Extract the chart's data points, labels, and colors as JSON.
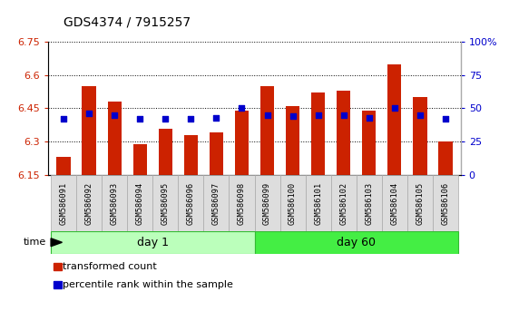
{
  "title": "GDS4374 / 7915257",
  "samples": [
    "GSM586091",
    "GSM586092",
    "GSM586093",
    "GSM586094",
    "GSM586095",
    "GSM586096",
    "GSM586097",
    "GSM586098",
    "GSM586099",
    "GSM586100",
    "GSM586101",
    "GSM586102",
    "GSM586103",
    "GSM586104",
    "GSM586105",
    "GSM586106"
  ],
  "groups": [
    "day 1",
    "day 1",
    "day 1",
    "day 1",
    "day 1",
    "day 1",
    "day 1",
    "day 1",
    "day 60",
    "day 60",
    "day 60",
    "day 60",
    "day 60",
    "day 60",
    "day 60",
    "day 60"
  ],
  "bar_values": [
    6.23,
    6.55,
    6.48,
    6.29,
    6.36,
    6.33,
    6.34,
    6.44,
    6.55,
    6.46,
    6.52,
    6.53,
    6.44,
    6.65,
    6.5,
    6.3
  ],
  "dot_values": [
    42,
    46,
    45,
    42,
    42,
    42,
    43,
    50,
    45,
    44,
    45,
    45,
    43,
    50,
    45,
    42
  ],
  "ylim": [
    6.15,
    6.75
  ],
  "y2lim": [
    0,
    100
  ],
  "yticks": [
    6.15,
    6.3,
    6.45,
    6.6,
    6.75
  ],
  "y2ticks": [
    0,
    25,
    50,
    75,
    100
  ],
  "ytick_labels": [
    "6.15",
    "6.3",
    "6.45",
    "6.6",
    "6.75"
  ],
  "y2tick_labels": [
    "0",
    "25",
    "50",
    "75",
    "100%"
  ],
  "bar_color": "#cc2200",
  "dot_color": "#0000cc",
  "bar_bottom": 6.15,
  "group_colors": {
    "day 1": "#bbffbb",
    "day 60": "#44ee44"
  },
  "legend_bar": "transformed count",
  "legend_dot": "percentile rank within the sample",
  "xlabel_time": "time",
  "figsize": [
    5.61,
    3.54
  ],
  "dpi": 100
}
